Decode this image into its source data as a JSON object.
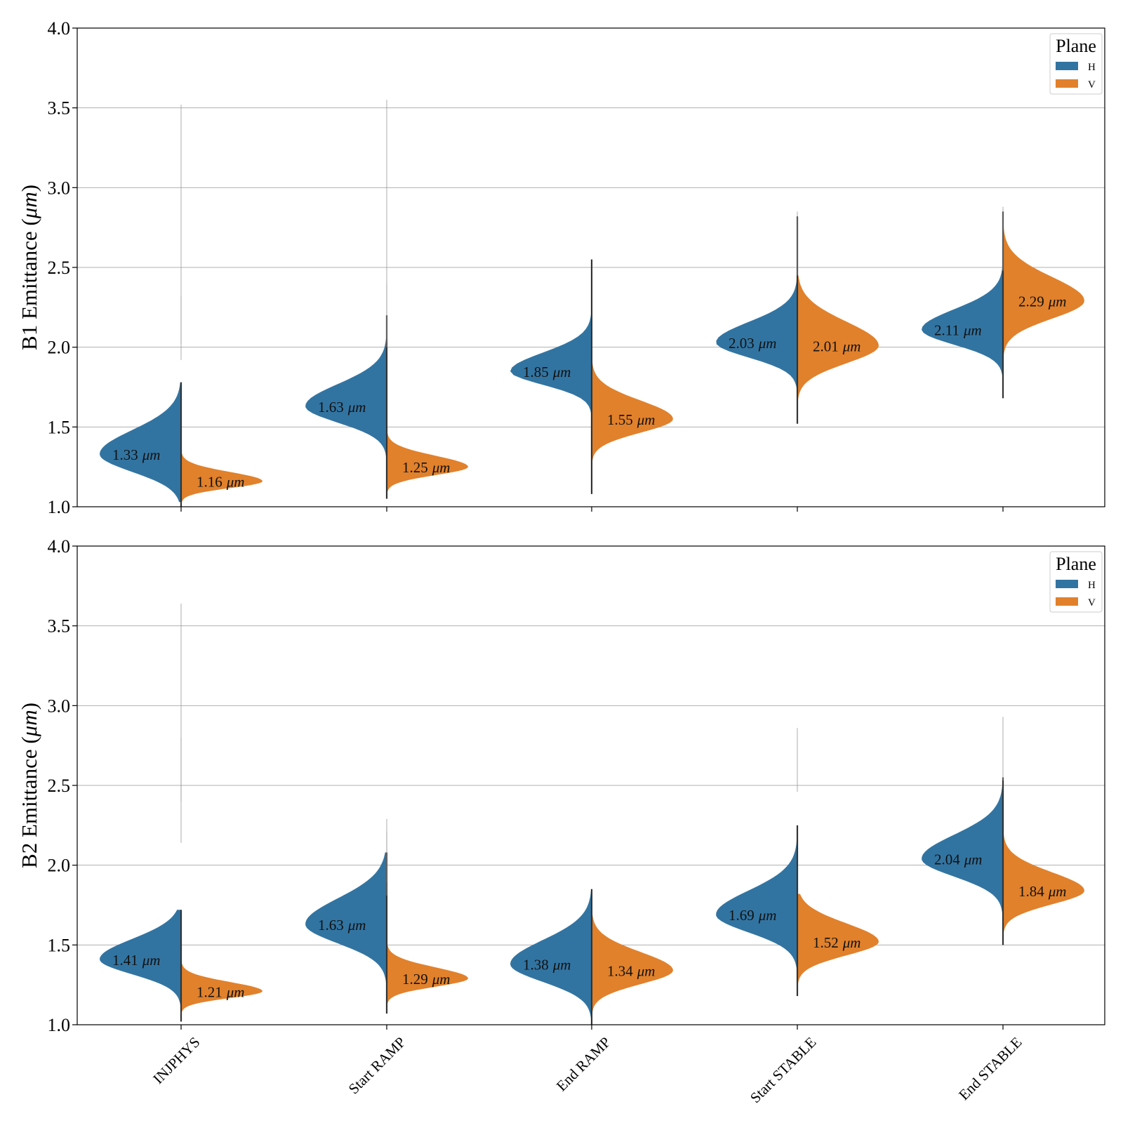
{
  "chart_data": [
    {
      "type": "violin",
      "ylabel_main": "B1 Emittance (",
      "ylabel_unit": "μm",
      "ylabel_close": ")",
      "ylim": [
        1.0,
        4.0
      ],
      "yticks": [
        "1.0",
        "1.5",
        "2.0",
        "2.5",
        "3.0",
        "3.5",
        "4.0"
      ],
      "categories": [
        "INJPHYS",
        "Start RAMP",
        "End RAMP",
        "Start STABLE",
        "End STABLE"
      ],
      "grid": "horizontal",
      "legend": {
        "title": "Plane",
        "placement": "top-right",
        "entries": [
          "H",
          "V"
        ]
      },
      "series": [
        {
          "name": "H",
          "color": "#3274a1",
          "medians": [
            1.33,
            1.63,
            1.85,
            2.03,
            2.11
          ],
          "labels": [
            "1.33",
            "1.63",
            "1.85",
            "2.03",
            "2.11"
          ],
          "ranges": [
            [
              1.03,
              1.78
            ],
            [
              1.05,
              2.2
            ],
            [
              1.1,
              2.55
            ],
            [
              1.52,
              2.82
            ],
            [
              1.68,
              2.85
            ]
          ],
          "spreads": [
            0.13,
            0.12,
            0.1,
            0.11,
            0.11
          ],
          "outliers": [
            2.32,
            3.52,
            3.55,
            2.4,
            2.85,
            2.88
          ]
        },
        {
          "name": "V",
          "color": "#e1812c",
          "medians": [
            1.16,
            1.25,
            1.55,
            2.01,
            2.29
          ],
          "labels": [
            "1.16",
            "1.25",
            "1.55",
            "2.01",
            "2.29"
          ],
          "ranges": [
            [
              1.0,
              1.37
            ],
            [
              1.05,
              1.52
            ],
            [
              1.08,
              1.97
            ],
            [
              1.58,
              2.45
            ],
            [
              1.92,
              2.82
            ]
          ],
          "spreads": [
            0.05,
            0.06,
            0.1,
            0.13,
            0.13
          ]
        }
      ]
    },
    {
      "type": "violin",
      "ylabel_main": "B2 Emittance (",
      "ylabel_unit": "μm",
      "ylabel_close": ")",
      "ylim": [
        1.0,
        4.0
      ],
      "yticks": [
        "1.0",
        "1.5",
        "2.0",
        "2.5",
        "3.0",
        "3.5",
        "4.0"
      ],
      "categories": [
        "INJPHYS",
        "Start RAMP",
        "End RAMP",
        "Start STABLE",
        "End STABLE"
      ],
      "grid": "horizontal",
      "legend": {
        "title": "Plane",
        "placement": "top-right",
        "entries": [
          "H",
          "V"
        ]
      },
      "series": [
        {
          "name": "H",
          "color": "#3274a1",
          "medians": [
            1.41,
            1.63,
            1.38,
            1.69,
            2.04
          ],
          "labels": [
            "1.41",
            "1.63",
            "1.38",
            "1.69",
            "2.04"
          ],
          "ranges": [
            [
              1.06,
              1.72
            ],
            [
              1.1,
              2.08
            ],
            [
              1.0,
              1.85
            ],
            [
              1.22,
              2.25
            ],
            [
              1.55,
              2.55
            ]
          ],
          "spreads": [
            0.11,
            0.14,
            0.13,
            0.13,
            0.13
          ],
          "outliers": [
            3.64,
            2.8,
            2.29,
            2.21,
            2.86,
            2.93
          ]
        },
        {
          "name": "V",
          "color": "#e1812c",
          "medians": [
            1.21,
            1.29,
            1.34,
            1.52,
            1.84
          ],
          "labels": [
            "1.21",
            "1.29",
            "1.34",
            "1.52",
            "1.84"
          ],
          "ranges": [
            [
              1.02,
              1.45
            ],
            [
              1.07,
              1.62
            ],
            [
              1.02,
              1.85
            ],
            [
              1.18,
              1.82
            ],
            [
              1.5,
              2.22
            ]
          ],
          "spreads": [
            0.05,
            0.06,
            0.1,
            0.1,
            0.1
          ]
        }
      ]
    }
  ]
}
